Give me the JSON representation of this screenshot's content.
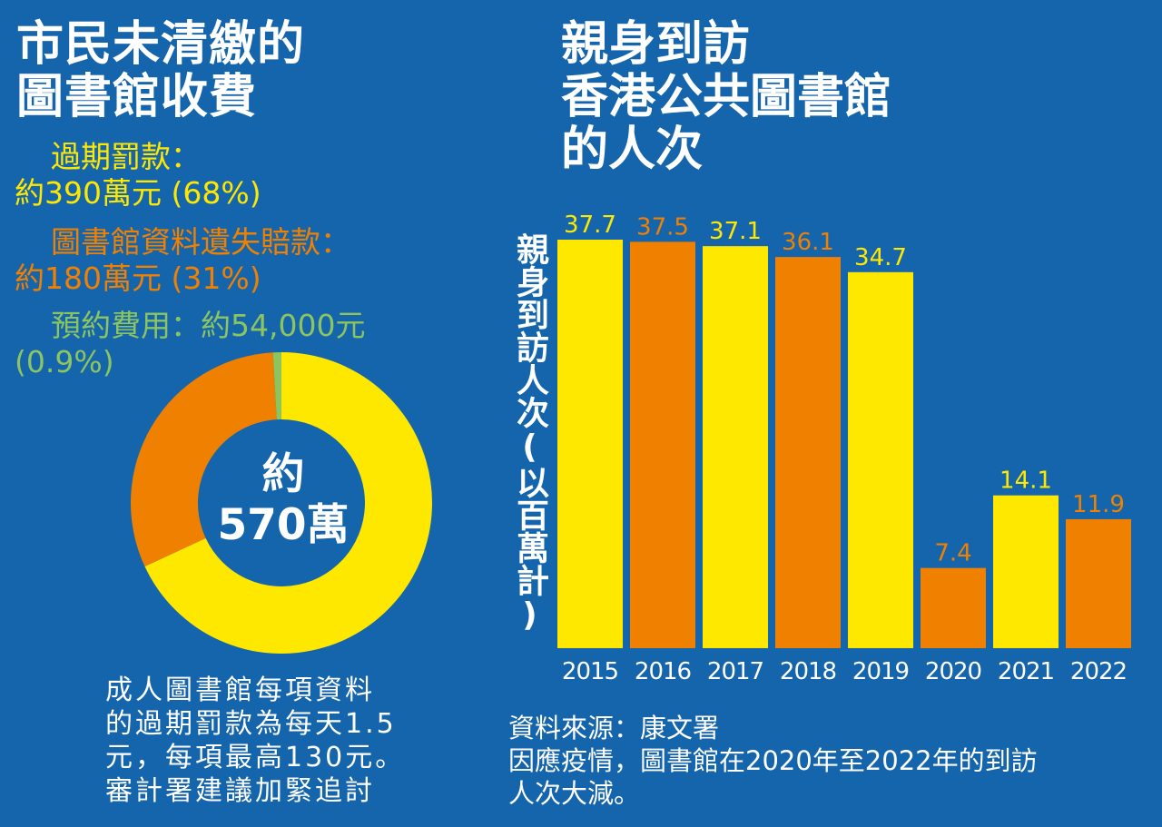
{
  "left_panel": {
    "title": "市民未清繳的\n圖書館收費",
    "legend": [
      {
        "label": "過期罰款：\n約390萬元 (68%)",
        "color": "#ffe800"
      },
      {
        "label": "圖書館資料遺失賠款：\n約180萬元 (31%)",
        "color": "#f08000"
      },
      {
        "label": "預約費用：約54,000元\n(0.9%)",
        "color": "#8cc460"
      }
    ],
    "center_label": "約\n570萬",
    "note": "成人圖書館每項資料\n的過期罰款為每天1.5\n元，每項最高130元。\n審計署建議加緊追討"
  },
  "right_panel": {
    "title": "親身到訪\n香港公共圖書館\n的人次",
    "source": "資料來源：康文署\n因應疫情，圖書館在2020年至2022年的到訪\n人次大減。"
  },
  "chart_data": [
    {
      "type": "pie",
      "categories": [
        "過期罰款",
        "圖書館資料遺失賠款",
        "預約費用"
      ],
      "values": [
        68,
        31,
        0.9
      ],
      "value_labels": [
        "約390萬元 (68%)",
        "約180萬元 (31%)",
        "約54,000元 (0.9%)"
      ],
      "colors": [
        "#ffe800",
        "#f08000",
        "#8cc460"
      ],
      "center_text": "約570萬",
      "title": "市民未清繳的圖書館收費"
    },
    {
      "type": "bar",
      "categories": [
        "2015",
        "2016",
        "2017",
        "2018",
        "2019",
        "2020",
        "2021",
        "2022"
      ],
      "values": [
        37.7,
        37.5,
        37.1,
        36.1,
        34.7,
        7.4,
        14.1,
        11.9
      ],
      "colors": [
        "#ffe800",
        "#f08000",
        "#ffe800",
        "#f08000",
        "#ffe800",
        "#f08000",
        "#ffe800",
        "#f08000"
      ],
      "title": "親身到訪香港公共圖書館的人次",
      "xlabel": "",
      "ylabel": "親身到訪人次(以百萬計)",
      "ylim": [
        0,
        37.7
      ],
      "grid": false,
      "legend": "none"
    }
  ]
}
